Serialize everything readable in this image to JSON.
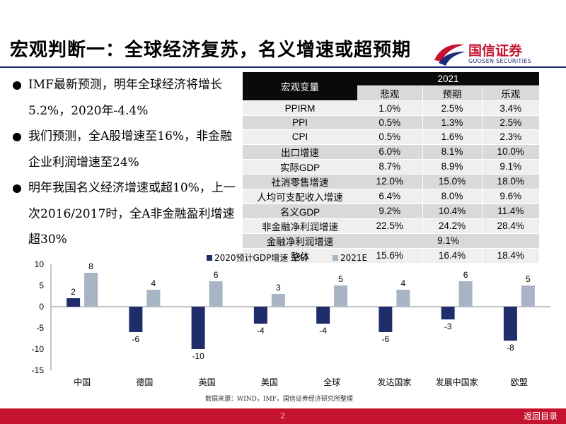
{
  "title": "宏观判断一：全球经济复苏，名义增速或超预期",
  "logo": {
    "cn": "国信证券",
    "en": "GUOSEN SECURITIES"
  },
  "bullets": [
    "IMF最新预测，明年全球经济将增长5.2%，2020年-4.4%",
    "我们预测，全A股增速至16%，非金融企业利润增速至24%",
    "明年我国名义经济增速或超10%，上一次2016/2017时，全A非金融盈利增速超30%"
  ],
  "table": {
    "year": "2021",
    "var_header": "宏观变量",
    "cols": [
      "悲观",
      "预期",
      "乐观"
    ],
    "rows": [
      {
        "name": "PPIRM",
        "vals": [
          "1.0%",
          "2.5%",
          "3.4%"
        ]
      },
      {
        "name": "PPI",
        "vals": [
          "0.5%",
          "1.3%",
          "2.5%"
        ]
      },
      {
        "name": "CPI",
        "vals": [
          "0.5%",
          "1.6%",
          "2.3%"
        ]
      },
      {
        "name": "出口增速",
        "vals": [
          "6.0%",
          "8.1%",
          "10.0%"
        ]
      },
      {
        "name": "实际GDP",
        "vals": [
          "8.7%",
          "8.9%",
          "9.1%"
        ]
      },
      {
        "name": "社消零售增速",
        "vals": [
          "12.0%",
          "15.0%",
          "18.0%"
        ]
      },
      {
        "name": "人均可支配收入增速",
        "vals": [
          "6.4%",
          "8.0%",
          "9.6%"
        ]
      },
      {
        "name": "名义GDP",
        "vals": [
          "9.2%",
          "10.4%",
          "11.4%"
        ]
      },
      {
        "name": "非金融净利润增速",
        "vals": [
          "22.5%",
          "24.2%",
          "28.4%"
        ]
      },
      {
        "name": "金融净利润增速",
        "merged": "9.1%"
      },
      {
        "name": "整体",
        "vals": [
          "15.6%",
          "16.4%",
          "18.4%"
        ]
      }
    ]
  },
  "chart_data": {
    "type": "bar",
    "categories": [
      "中国",
      "德国",
      "英国",
      "美国",
      "全球",
      "发达国家",
      "发展中国家",
      "欧盟"
    ],
    "series": [
      {
        "name": "2020预计GDP增速（%）",
        "values": [
          2,
          -6,
          -10,
          -4,
          -4,
          -6,
          -3,
          -8
        ],
        "color": "#1f2d6b"
      },
      {
        "name": "2021E",
        "values": [
          8,
          4,
          6,
          3,
          5,
          4,
          6,
          5
        ],
        "color": "#a6b4c4"
      }
    ],
    "ylim": [
      -15,
      10
    ],
    "yticks": [
      -15,
      -10,
      -5,
      0,
      5,
      10
    ],
    "legend": "top-center",
    "grid": false
  },
  "source": "数据来源：WIND，IMF，国信证券经济研究所整理",
  "page_number": "2",
  "back_label": "返回目录"
}
